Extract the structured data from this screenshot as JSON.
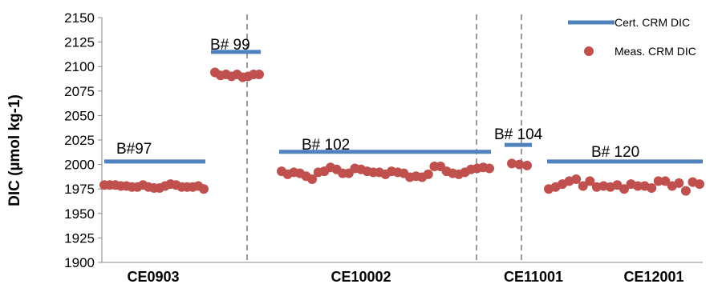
{
  "chart_data": {
    "type": "scatter",
    "ylabel": "DIC  (µmol kg-1)",
    "ylim": [
      1900,
      2150
    ],
    "yticks": [
      1900,
      1925,
      1950,
      1975,
      2000,
      2025,
      2050,
      2075,
      2100,
      2125,
      2150
    ],
    "grid": false,
    "legend_position": "top-right",
    "categories": [
      "CE0903",
      "CE10002",
      "CE11001",
      "CE12001"
    ],
    "colors": {
      "certified": "#4f81bd",
      "measured": "#c0504d"
    },
    "series": [
      {
        "name": "Cert. CRM DIC",
        "kind": "line"
      },
      {
        "name": "Meas. CRM DIC",
        "kind": "marker"
      }
    ],
    "batches": [
      {
        "label": "B#97",
        "certified": 2003,
        "measured": [
          1979,
          1979,
          1979,
          1978,
          1978,
          1977,
          1977,
          1979,
          1977,
          1976,
          1976,
          1978,
          1980,
          1979,
          1977,
          1977,
          1977,
          1978,
          1975
        ]
      },
      {
        "label": "B# 99",
        "certified": 2115,
        "measured": [
          2094,
          2091,
          2092,
          2090,
          2092,
          2089,
          2090,
          2092,
          2092
        ]
      },
      {
        "label": "B# 102",
        "certified": 2013,
        "measured": [
          1993,
          1990,
          1992,
          1991,
          1988,
          1985,
          1992,
          1993,
          1997,
          1995,
          1991,
          1991,
          1996,
          1995,
          1993,
          1992,
          1992,
          1990,
          1993,
          1992,
          1991,
          1987,
          1988,
          1987,
          1990,
          1998,
          1998,
          1993,
          1991,
          1990,
          1992,
          1995,
          1996,
          1997,
          1996
        ]
      },
      {
        "label": "B# 104",
        "certified": 2020,
        "measured": [
          2001,
          2000,
          1999
        ]
      },
      {
        "label": "B# 120",
        "certified": 2003,
        "measured": [
          1975,
          1977,
          1980,
          1983,
          1985,
          1978,
          1983,
          1977,
          1978,
          1977,
          1979,
          1975,
          1980,
          1978,
          1978,
          1976,
          1983,
          1983,
          1978,
          1981,
          1973,
          1982,
          1980
        ]
      }
    ]
  }
}
